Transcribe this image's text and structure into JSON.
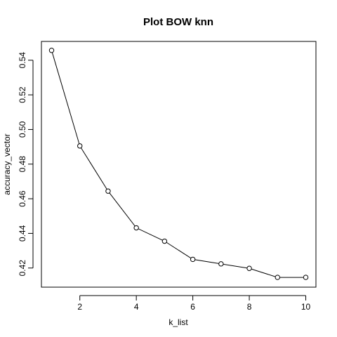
{
  "chart_data": {
    "type": "line",
    "title": "Plot BOW knn",
    "xlabel": "k_list",
    "ylabel": "accuracy_vector",
    "x": [
      1,
      2,
      3,
      4,
      5,
      6,
      7,
      8,
      9,
      10
    ],
    "values": [
      0.5457,
      0.4905,
      0.4644,
      0.4432,
      0.4355,
      0.425,
      0.4224,
      0.4198,
      0.4146,
      0.4146
    ],
    "xlim": [
      0.64,
      10.36
    ],
    "ylim": [
      0.40895,
      0.55085
    ],
    "xticks": [
      2,
      4,
      6,
      8,
      10
    ],
    "yticks": [
      0.42,
      0.44,
      0.46,
      0.48,
      0.5,
      0.52,
      0.54
    ],
    "ytick_labels": [
      "0.42",
      "0.44",
      "0.46",
      "0.48",
      "0.50",
      "0.52",
      "0.54"
    ],
    "grid": false,
    "markers": "open-circle",
    "line_color": "#000000"
  }
}
